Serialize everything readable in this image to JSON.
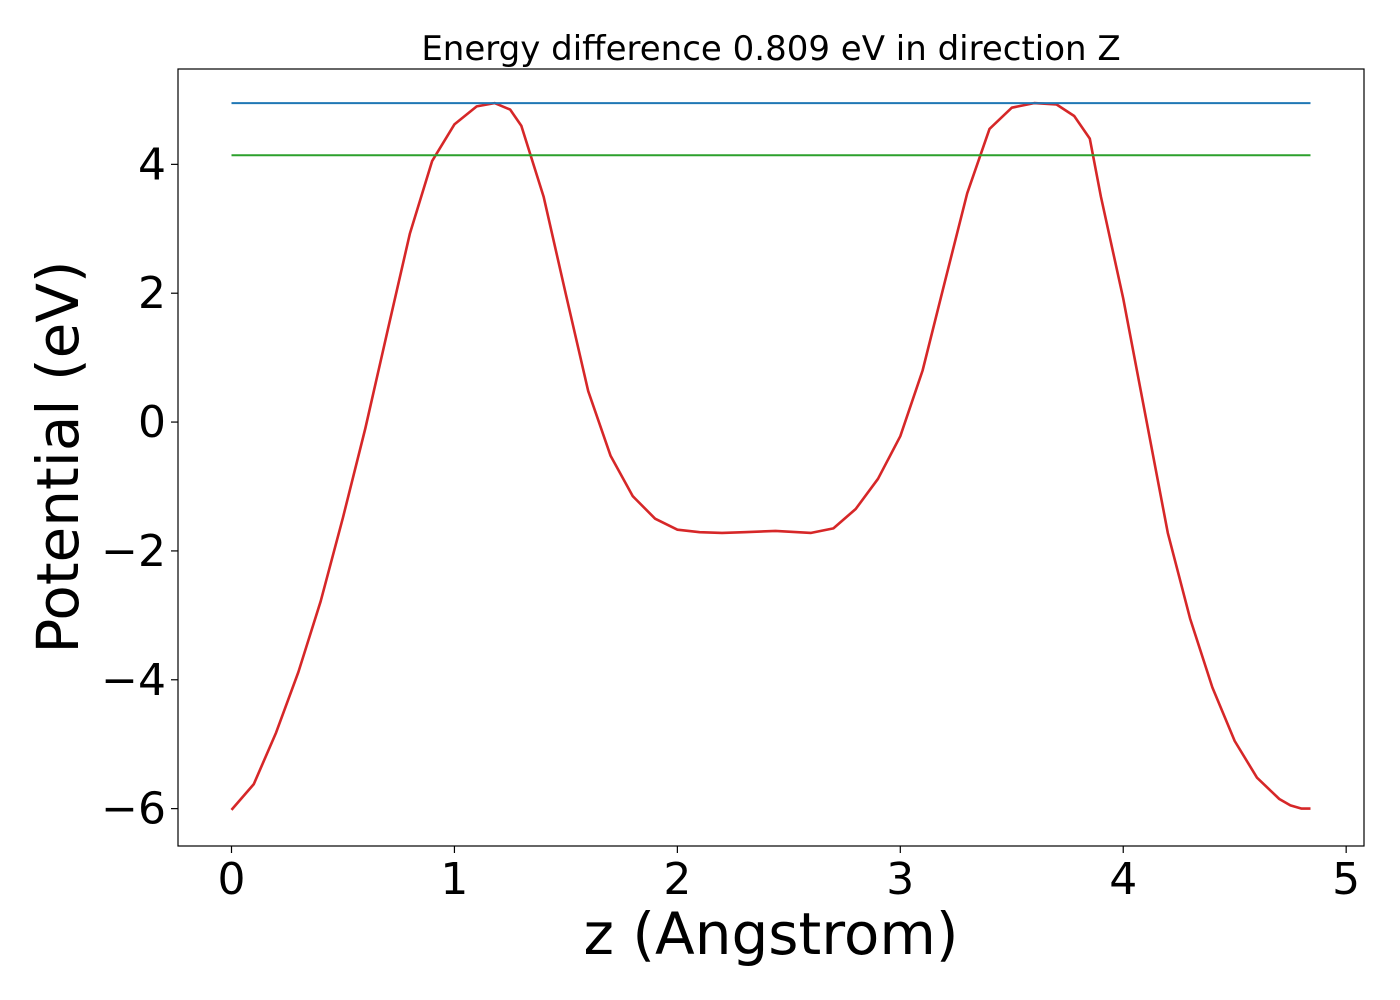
{
  "chart_data": {
    "type": "line",
    "title": "Energy difference 0.809 eV in direction Z",
    "xlabel": "z (Angstrom)",
    "ylabel": "Potential (eV)",
    "xlim": [
      -0.24,
      5.08
    ],
    "ylim": [
      -6.58,
      5.48
    ],
    "xticks": [
      0,
      1,
      2,
      3,
      4,
      5
    ],
    "xtick_labels": [
      "0",
      "1",
      "2",
      "3",
      "4",
      "5"
    ],
    "yticks": [
      -6,
      -4,
      -2,
      0,
      2,
      4
    ],
    "ytick_labels": [
      "−6",
      "−4",
      "−2",
      "0",
      "2",
      "4"
    ],
    "grid": false,
    "series": [
      {
        "color": "#d62728",
        "x": [
          0.0,
          0.1,
          0.2,
          0.3,
          0.4,
          0.5,
          0.6,
          0.7,
          0.8,
          0.9,
          1.0,
          1.1,
          1.18,
          1.25,
          1.3,
          1.4,
          1.5,
          1.6,
          1.7,
          1.8,
          1.9,
          2.0,
          2.1,
          2.2,
          2.3,
          2.44,
          2.6,
          2.7,
          2.8,
          2.9,
          3.0,
          3.1,
          3.2,
          3.3,
          3.4,
          3.5,
          3.6,
          3.7,
          3.78,
          3.85,
          3.9,
          4.0,
          4.1,
          4.2,
          4.3,
          4.4,
          4.5,
          4.6,
          4.7,
          4.75,
          4.8,
          4.84
        ],
        "y": [
          -6.02,
          -5.62,
          -4.82,
          -3.88,
          -2.78,
          -1.48,
          -0.1,
          1.42,
          2.92,
          4.05,
          4.62,
          4.9,
          4.95,
          4.85,
          4.6,
          3.5,
          1.98,
          0.48,
          -0.52,
          -1.15,
          -1.5,
          -1.67,
          -1.71,
          -1.72,
          -1.71,
          -1.69,
          -1.72,
          -1.65,
          -1.35,
          -0.88,
          -0.22,
          0.8,
          2.18,
          3.55,
          4.55,
          4.88,
          4.95,
          4.93,
          4.75,
          4.4,
          3.5,
          1.92,
          0.1,
          -1.72,
          -3.05,
          -4.12,
          -4.95,
          -5.52,
          -5.85,
          -5.95,
          -6.0,
          -6.0
        ]
      },
      {
        "color": "#1f77b4",
        "x": [
          0.0,
          4.84
        ],
        "y": [
          4.95,
          4.95
        ]
      },
      {
        "color": "#2ca02c",
        "x": [
          0.0,
          4.84
        ],
        "y": [
          4.141,
          4.141
        ]
      }
    ]
  }
}
